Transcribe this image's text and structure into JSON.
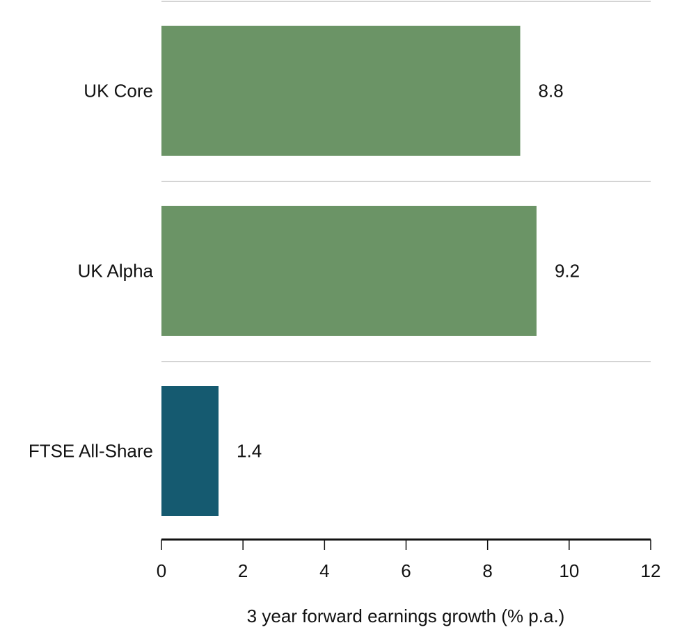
{
  "chart_data": {
    "type": "bar",
    "orientation": "horizontal",
    "categories": [
      "UK Core",
      "UK Alpha",
      "FTSE All-Share"
    ],
    "values": [
      8.8,
      9.2,
      1.4
    ],
    "value_labels": [
      "8.8",
      "9.2",
      "1.4"
    ],
    "colors": [
      "#6b9466",
      "#6b9466",
      "#155a70"
    ],
    "title": "",
    "xlabel": "3 year forward earnings growth (% p.a.)",
    "ylabel": "",
    "xlim": [
      0,
      12
    ],
    "xticks": [
      0,
      2,
      4,
      6,
      8,
      10,
      12
    ],
    "xtick_labels": [
      "0",
      "2",
      "4",
      "6",
      "8",
      "10",
      "12"
    ],
    "grid": "horizontal separators between categories",
    "legend": "none"
  },
  "colors": {
    "separator": "#d4d4d4",
    "axis": "#111111",
    "text": "#111111"
  }
}
